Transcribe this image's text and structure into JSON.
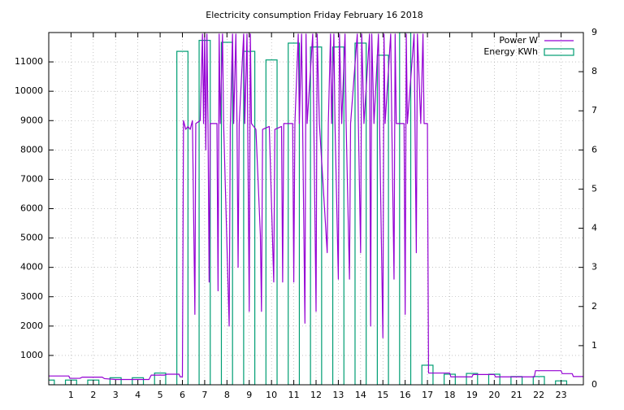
{
  "chart_data": {
    "type": "line-boxes",
    "title": "Electricity consumption Friday February 16 2018",
    "xlim": [
      0,
      24
    ],
    "xticks": [
      1,
      2,
      3,
      4,
      5,
      6,
      7,
      8,
      9,
      10,
      11,
      12,
      13,
      14,
      15,
      16,
      17,
      18,
      19,
      20,
      21,
      22,
      23
    ],
    "ylim": [
      0,
      12000
    ],
    "yticks": [
      1000,
      2000,
      3000,
      4000,
      5000,
      6000,
      7000,
      8000,
      9000,
      10000,
      11000
    ],
    "y2lim": [
      0,
      9
    ],
    "y2ticks": [
      0,
      1,
      2,
      3,
      4,
      5,
      6,
      7,
      8,
      9
    ],
    "grid": true,
    "legend": "top-right",
    "series": [
      {
        "name": "Power W",
        "color": "#9400d3",
        "x": [
          0,
          0.9,
          0.95,
          1.4,
          1.5,
          2.4,
          2.5,
          3.0,
          4.5,
          4.6,
          5.2,
          5.3,
          5.85,
          5.9,
          6.0,
          6.05,
          6.15,
          6.25,
          6.35,
          6.45,
          6.56,
          6.6,
          6.8,
          6.9,
          6.95,
          7.0,
          7.05,
          7.1,
          7.15,
          7.2,
          7.25,
          7.55,
          7.6,
          7.65,
          7.7,
          7.8,
          7.85,
          8.1,
          8.15,
          8.25,
          8.3,
          8.4,
          8.45,
          8.5,
          8.55,
          8.75,
          8.8,
          8.9,
          9.0,
          9.05,
          9.1,
          9.3,
          9.5,
          9.55,
          9.6,
          9.9,
          10.1,
          10.15,
          10.45,
          10.5,
          10.55,
          10.95,
          11.0,
          11.05,
          11.2,
          11.25,
          11.35,
          11.5,
          11.55,
          11.6,
          11.85,
          11.9,
          12.0,
          12.05,
          12.15,
          12.5,
          12.55,
          12.65,
          12.7,
          12.8,
          12.85,
          13.0,
          13.05,
          13.15,
          13.3,
          13.35,
          13.5,
          13.55,
          13.85,
          13.9,
          14.0,
          14.05,
          14.15,
          14.4,
          14.45,
          14.5,
          14.6,
          14.8,
          14.85,
          15.0,
          15.05,
          15.1,
          15.35,
          15.4,
          15.5,
          15.55,
          15.6,
          15.95,
          16.0,
          16.05,
          16.1,
          16.4,
          16.5,
          16.55,
          16.7,
          16.8,
          16.85,
          17.0,
          17.02,
          17.05,
          18.0,
          18.05,
          19.0,
          19.05,
          20.0,
          20.05,
          21.8,
          21.85,
          23.0,
          23.05,
          23.5,
          23.55,
          24.0
        ],
        "values": [
          300,
          300,
          220,
          220,
          260,
          260,
          210,
          180,
          180,
          330,
          330,
          360,
          360,
          270,
          270,
          9000,
          8700,
          8800,
          8700,
          9000,
          2400,
          8900,
          9000,
          11950,
          8900,
          11950,
          8000,
          11950,
          8900,
          3500,
          8900,
          8900,
          3200,
          11950,
          8900,
          11950,
          8900,
          2000,
          8800,
          11950,
          8900,
          11950,
          8900,
          4000,
          8900,
          11950,
          8900,
          11950,
          2500,
          11950,
          8900,
          8700,
          5100,
          2500,
          8700,
          8800,
          3500,
          8700,
          8800,
          3500,
          8900,
          8900,
          3500,
          8900,
          11950,
          8900,
          11950,
          2100,
          11950,
          8900,
          11950,
          8900,
          2500,
          11950,
          8900,
          4500,
          8900,
          11950,
          8900,
          11950,
          8900,
          3600,
          11950,
          8900,
          11950,
          8900,
          3600,
          8900,
          11950,
          8900,
          4500,
          11950,
          8900,
          11950,
          2000,
          11950,
          8900,
          11950,
          8900,
          1600,
          11950,
          8900,
          11950,
          8900,
          3600,
          11950,
          8900,
          8900,
          2400,
          11950,
          8900,
          11950,
          4500,
          11950,
          8900,
          11950,
          8900,
          8900,
          5100,
          400,
          400,
          270,
          270,
          350,
          350,
          270,
          270,
          480,
          480,
          380,
          380,
          280,
          280
        ]
      },
      {
        "name": "Energy KWh",
        "color": "#009e73",
        "axis": "y2",
        "x": [
          0,
          1,
          2,
          3,
          4,
          5,
          6,
          7,
          8,
          9,
          10,
          11,
          12,
          13,
          14,
          15,
          16,
          17,
          18,
          19,
          20,
          21,
          22,
          23
        ],
        "values": [
          0.12,
          0.12,
          0.12,
          0.18,
          0.18,
          0.3,
          8.52,
          8.8,
          8.75,
          8.52,
          8.3,
          8.73,
          8.63,
          8.63,
          8.73,
          8.42,
          9.0,
          0.5,
          0.27,
          0.29,
          0.27,
          0.21,
          0.21,
          0.1
        ]
      }
    ]
  }
}
